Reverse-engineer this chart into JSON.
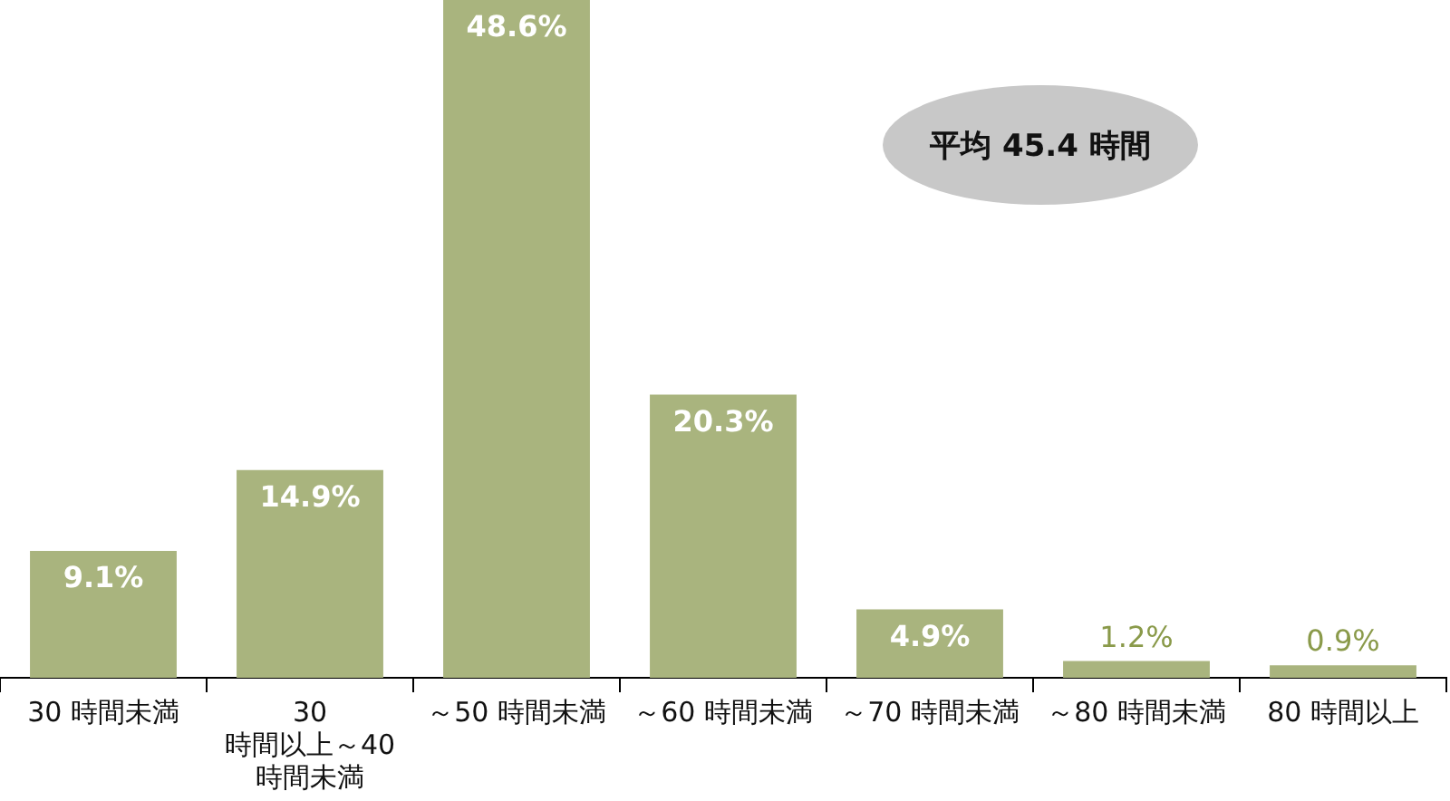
{
  "chart_data": {
    "type": "bar",
    "categories": [
      "30 時間未満",
      "30 時間以上～40 時間未満",
      "～50 時間未満",
      "～60 時間未満",
      "～70 時間未満",
      "～80 時間未満",
      "80 時間以上"
    ],
    "values": [
      9.1,
      14.9,
      48.6,
      20.3,
      4.9,
      1.2,
      0.9
    ],
    "value_labels": [
      "9.1%",
      "14.9%",
      "48.6%",
      "20.3%",
      "4.9%",
      "1.2%",
      "0.9%"
    ],
    "color": "#a9b47e",
    "grid": false,
    "legend": false,
    "annotations": [
      "平均 45.4 時間"
    ]
  }
}
